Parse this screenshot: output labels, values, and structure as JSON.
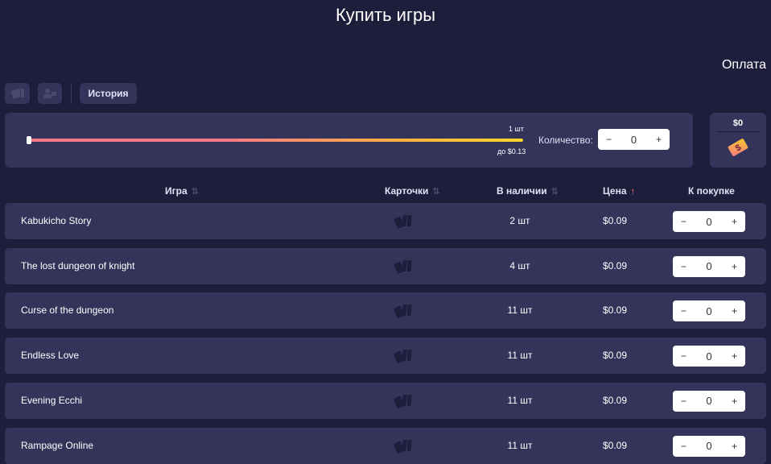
{
  "header": {
    "title": "Купить игры",
    "payment": "Оплата"
  },
  "toolbar": {
    "history_label": "История"
  },
  "slider": {
    "count_label": "1 шт",
    "price_label": "до $0.13",
    "value_fraction": 0
  },
  "quantity": {
    "label": "Количество:",
    "value": "0",
    "minus": "−",
    "plus": "+"
  },
  "wallet": {
    "amount": "$0"
  },
  "table": {
    "headers": {
      "game": "Игра",
      "cards": "Карточки",
      "stock": "В наличии",
      "price": "Цена",
      "buy": "К покупке"
    },
    "rows": [
      {
        "name": "Kabukicho Story",
        "stock": "2 шт",
        "price": "$0.09",
        "qty": "0"
      },
      {
        "name": "The lost dungeon of knight",
        "stock": "4 шт",
        "price": "$0.09",
        "qty": "0"
      },
      {
        "name": "Curse of the dungeon",
        "stock": "11 шт",
        "price": "$0.09",
        "qty": "0"
      },
      {
        "name": "Endless Love",
        "stock": "11 шт",
        "price": "$0.09",
        "qty": "0"
      },
      {
        "name": "Evening Ecchi",
        "stock": "11 шт",
        "price": "$0.09",
        "qty": "0"
      },
      {
        "name": "Rampage Online",
        "stock": "11 шт",
        "price": "$0.09",
        "qty": "0"
      }
    ]
  },
  "colors": {
    "background": "#1f1d3c",
    "panel": "#34335a",
    "sort_active": "#f5876a"
  }
}
